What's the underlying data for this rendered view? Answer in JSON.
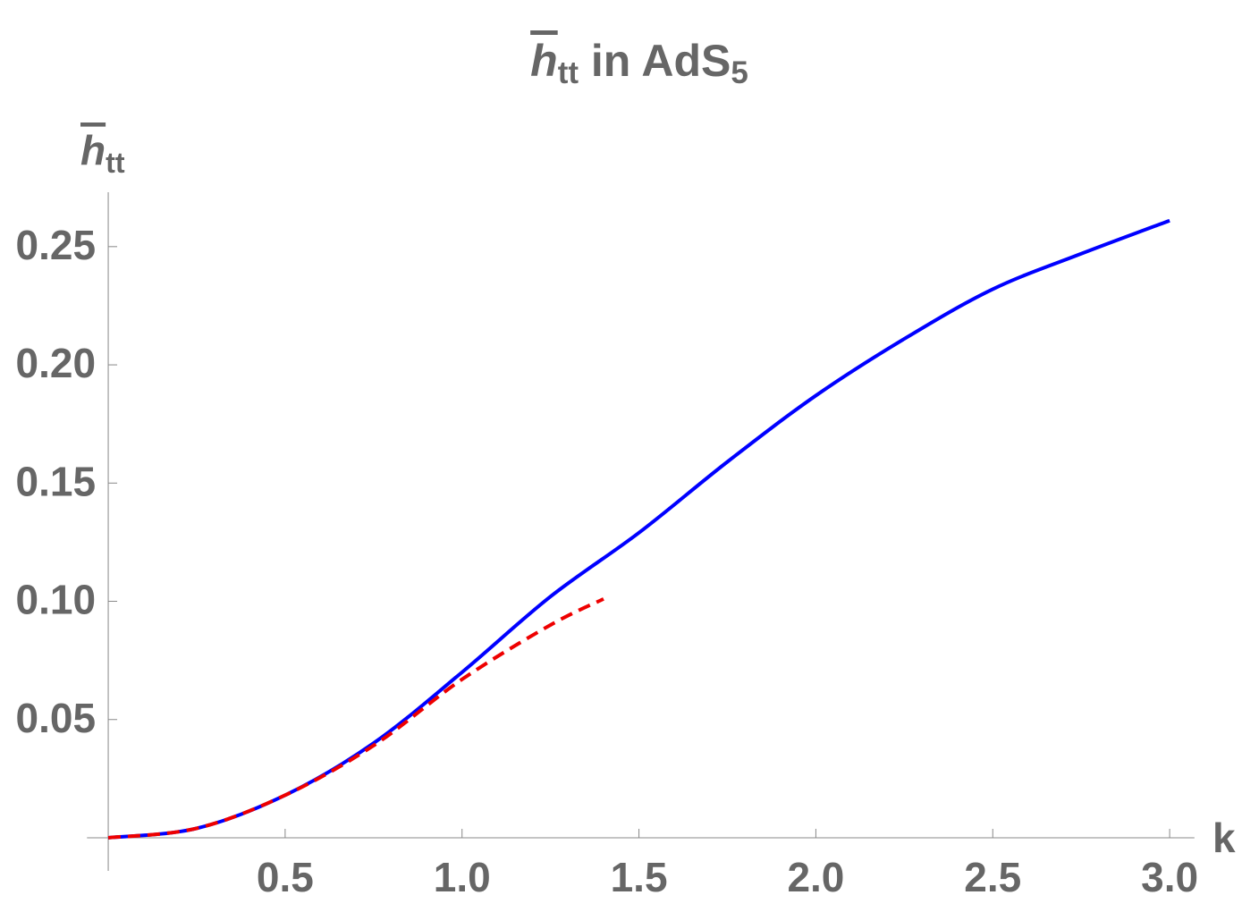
{
  "chart_data": {
    "type": "line",
    "title": [
      "h",
      "tt",
      " in AdS",
      "5"
    ],
    "ylabel": [
      "h",
      "tt"
    ],
    "xlabel": "k",
    "series": [
      {
        "color": "#0000ff",
        "dash": false,
        "x": [
          0,
          0.25,
          0.5,
          0.75,
          1.0,
          1.25,
          1.5,
          1.75,
          2.0,
          2.25,
          2.5,
          2.75,
          3.0
        ],
        "values": [
          0,
          0.004,
          0.018,
          0.04,
          0.07,
          0.102,
          0.129,
          0.159,
          0.187,
          0.211,
          0.232,
          0.247,
          0.261
        ]
      },
      {
        "color": "#ee0000",
        "dash": true,
        "x": [
          0,
          0.25,
          0.5,
          0.75,
          1.0,
          1.25,
          1.4
        ],
        "values": [
          0,
          0.004,
          0.018,
          0.039,
          0.067,
          0.09,
          0.101
        ]
      }
    ],
    "xlim": [
      -0.06,
      3.07
    ],
    "ylim": [
      -0.014,
      0.273
    ],
    "xticks": [
      0.5,
      {
        "value": 1,
        "label": "1.0"
      },
      1.5,
      {
        "value": 2,
        "label": "2.0"
      },
      2.5,
      {
        "value": 3,
        "label": "3.0"
      }
    ],
    "yticks": [
      0.05,
      {
        "value": 0.1,
        "label": "0.10"
      },
      0.15,
      {
        "value": 0.2,
        "label": "0.20"
      },
      0.25
    ]
  }
}
